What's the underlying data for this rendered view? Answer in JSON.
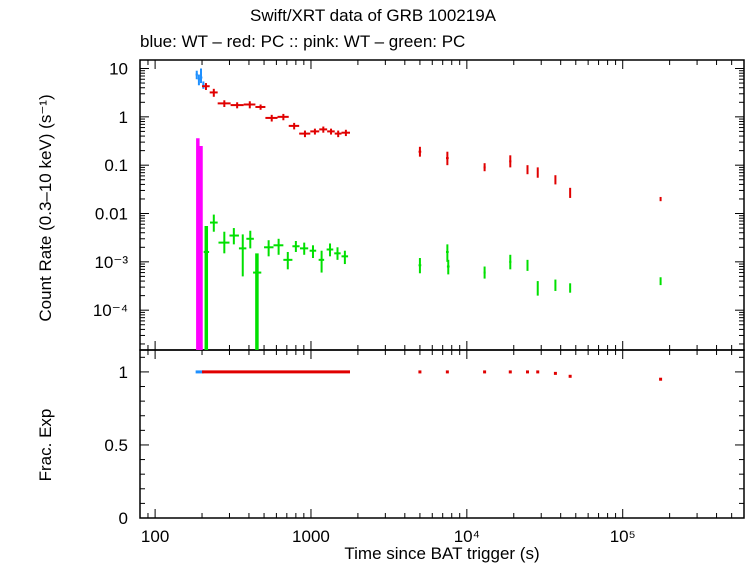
{
  "chart_data": [
    {
      "panel": "top",
      "type": "scatter",
      "title": "Swift/XRT data of GRB 100219A",
      "subtitle": "blue: WT  – red: PC  :: pink: WT  – green: PC",
      "xlabel": "Time since BAT trigger (s)",
      "ylabel": "Count Rate (0.3–10 keV) (s⁻¹)",
      "xscale": "log",
      "yscale": "log",
      "xlim": [
        80,
        600000
      ],
      "ylim": [
        1.5e-05,
        15
      ],
      "x_ticks": [
        {
          "value": 100,
          "label": "100"
        },
        {
          "value": 1000,
          "label": "1000"
        },
        {
          "value": 10000,
          "label": "10⁴"
        },
        {
          "value": 100000,
          "label": "10⁵"
        }
      ],
      "y_ticks": [
        {
          "value": 10,
          "label": "10"
        },
        {
          "value": 1,
          "label": "1"
        },
        {
          "value": 0.1,
          "label": "0.1"
        },
        {
          "value": 0.01,
          "label": "0.01"
        },
        {
          "value": 0.001,
          "label": "10⁻³"
        },
        {
          "value": 0.0001,
          "label": "10⁻⁴"
        }
      ],
      "series": [
        {
          "color": "#1e90ff",
          "points": [
            {
              "x": 185,
              "x0": 182,
              "x1": 188,
              "y": 7.5,
              "y0": 6.0,
              "y1": 9.0
            },
            {
              "x": 191,
              "x0": 188,
              "x1": 194,
              "y": 6.0,
              "y0": 4.5,
              "y1": 7.5
            },
            {
              "x": 197,
              "x0": 194,
              "x1": 201,
              "y": 6.5,
              "y0": 5.0,
              "y1": 10.0
            },
            {
              "x": 204,
              "x0": 201,
              "x1": 207,
              "y": 4.6,
              "y0": 3.8,
              "y1": 5.4
            }
          ]
        },
        {
          "color": "#ff00ff",
          "points": [
            {
              "x": 188,
              "x0": 186,
              "x1": 190,
              "y": 0.3,
              "y0": 1.5e-05,
              "y1": 0.36
            },
            {
              "x": 197,
              "x0": 194,
              "x1": 200,
              "y": 0.12,
              "y0": 1.5e-05,
              "y1": 0.25
            }
          ]
        },
        {
          "color": "#e00000",
          "points": [
            {
              "x": 212,
              "x0": 200,
              "x1": 224,
              "y": 4.3,
              "y0": 3.6,
              "y1": 5.0
            },
            {
              "x": 238,
              "x0": 224,
              "x1": 252,
              "y": 3.2,
              "y0": 2.6,
              "y1": 3.8
            },
            {
              "x": 278,
              "x0": 252,
              "x1": 305,
              "y": 1.9,
              "y0": 1.6,
              "y1": 2.2
            },
            {
              "x": 336,
              "x0": 305,
              "x1": 370,
              "y": 1.75,
              "y0": 1.5,
              "y1": 2.0
            },
            {
              "x": 405,
              "x0": 370,
              "x1": 440,
              "y": 1.8,
              "y0": 1.5,
              "y1": 2.1
            },
            {
              "x": 475,
              "x0": 440,
              "x1": 510,
              "y": 1.6,
              "y0": 1.4,
              "y1": 1.8
            },
            {
              "x": 560,
              "x0": 510,
              "x1": 610,
              "y": 0.95,
              "y0": 0.8,
              "y1": 1.1
            },
            {
              "x": 665,
              "x0": 610,
              "x1": 720,
              "y": 1.0,
              "y0": 0.85,
              "y1": 1.15
            },
            {
              "x": 780,
              "x0": 720,
              "x1": 840,
              "y": 0.65,
              "y0": 0.55,
              "y1": 0.75
            },
            {
              "x": 915,
              "x0": 840,
              "x1": 990,
              "y": 0.45,
              "y0": 0.38,
              "y1": 0.52
            },
            {
              "x": 1060,
              "x0": 990,
              "x1": 1130,
              "y": 0.5,
              "y0": 0.43,
              "y1": 0.57
            },
            {
              "x": 1200,
              "x0": 1130,
              "x1": 1270,
              "y": 0.55,
              "y0": 0.47,
              "y1": 0.63
            },
            {
              "x": 1345,
              "x0": 1270,
              "x1": 1420,
              "y": 0.5,
              "y0": 0.43,
              "y1": 0.57
            },
            {
              "x": 1495,
              "x0": 1420,
              "x1": 1570,
              "y": 0.45,
              "y0": 0.38,
              "y1": 0.52
            },
            {
              "x": 1675,
              "x0": 1570,
              "x1": 1780,
              "y": 0.47,
              "y0": 0.4,
              "y1": 0.54
            },
            {
              "x": 5000,
              "x0": 4900,
              "x1": 5100,
              "y": 0.19,
              "y0": 0.15,
              "y1": 0.24
            },
            {
              "x": 7500,
              "x0": 7350,
              "x1": 7650,
              "y": 0.14,
              "y0": 0.1,
              "y1": 0.19
            },
            {
              "x": 13000,
              "x0": 12800,
              "x1": 13200,
              "y": 0.09,
              "y0": 0.075,
              "y1": 0.11
            },
            {
              "x": 19000,
              "x0": 18700,
              "x1": 19300,
              "y": 0.12,
              "y0": 0.09,
              "y1": 0.16
            },
            {
              "x": 24500,
              "x0": 24200,
              "x1": 24800,
              "y": 0.08,
              "y0": 0.065,
              "y1": 0.1
            },
            {
              "x": 28500,
              "x0": 28200,
              "x1": 28800,
              "y": 0.07,
              "y0": 0.055,
              "y1": 0.09
            },
            {
              "x": 37000,
              "x0": 36700,
              "x1": 37300,
              "y": 0.05,
              "y0": 0.04,
              "y1": 0.062
            },
            {
              "x": 46000,
              "x0": 45700,
              "x1": 46300,
              "y": 0.027,
              "y0": 0.021,
              "y1": 0.034
            },
            {
              "x": 175000,
              "x0": 173500,
              "x1": 176500,
              "y": 0.02,
              "y0": 0.018,
              "y1": 0.022
            }
          ]
        },
        {
          "color": "#00e000",
          "points": [
            {
              "x": 213,
              "x0": 205,
              "x1": 222,
              "y": 0.0016,
              "y0": 1.5e-05,
              "y1": 0.0055
            },
            {
              "x": 238,
              "x0": 225,
              "x1": 252,
              "y": 0.0065,
              "y0": 0.0042,
              "y1": 0.0095
            },
            {
              "x": 278,
              "x0": 255,
              "x1": 300,
              "y": 0.0025,
              "y0": 0.0015,
              "y1": 0.0042
            },
            {
              "x": 320,
              "x0": 300,
              "x1": 345,
              "y": 0.0035,
              "y0": 0.0023,
              "y1": 0.005
            },
            {
              "x": 365,
              "x0": 345,
              "x1": 385,
              "y": 0.0019,
              "y0": 0.0005,
              "y1": 0.0037
            },
            {
              "x": 408,
              "x0": 385,
              "x1": 430,
              "y": 0.003,
              "y0": 0.0019,
              "y1": 0.0044
            },
            {
              "x": 450,
              "x0": 425,
              "x1": 480,
              "y": 0.0006,
              "y0": 1.5e-05,
              "y1": 0.0015
            },
            {
              "x": 535,
              "x0": 500,
              "x1": 575,
              "y": 0.002,
              "y0": 0.0013,
              "y1": 0.0028
            },
            {
              "x": 620,
              "x0": 575,
              "x1": 665,
              "y": 0.0022,
              "y0": 0.0014,
              "y1": 0.003
            },
            {
              "x": 710,
              "x0": 665,
              "x1": 760,
              "y": 0.0011,
              "y0": 0.0007,
              "y1": 0.0016
            },
            {
              "x": 800,
              "x0": 760,
              "x1": 845,
              "y": 0.0021,
              "y0": 0.0016,
              "y1": 0.0027
            },
            {
              "x": 905,
              "x0": 850,
              "x1": 960,
              "y": 0.0019,
              "y0": 0.0014,
              "y1": 0.0025
            },
            {
              "x": 1030,
              "x0": 980,
              "x1": 1080,
              "y": 0.0017,
              "y0": 0.0012,
              "y1": 0.0022
            },
            {
              "x": 1170,
              "x0": 1120,
              "x1": 1215,
              "y": 0.0011,
              "y0": 0.0006,
              "y1": 0.0017
            },
            {
              "x": 1325,
              "x0": 1260,
              "x1": 1390,
              "y": 0.0018,
              "y0": 0.0013,
              "y1": 0.0024
            },
            {
              "x": 1480,
              "x0": 1410,
              "x1": 1550,
              "y": 0.0015,
              "y0": 0.0011,
              "y1": 0.002
            },
            {
              "x": 1650,
              "x0": 1570,
              "x1": 1730,
              "y": 0.0013,
              "y0": 0.0009,
              "y1": 0.0017
            },
            {
              "x": 5000,
              "x0": 4900,
              "x1": 5100,
              "y": 0.00085,
              "y0": 0.00058,
              "y1": 0.0012
            },
            {
              "x": 7500,
              "x0": 7350,
              "x1": 7650,
              "y": 0.0016,
              "y0": 0.001,
              "y1": 0.0023
            },
            {
              "x": 7600,
              "x0": 7450,
              "x1": 7750,
              "y": 0.0008,
              "y0": 0.00055,
              "y1": 0.0011
            },
            {
              "x": 13000,
              "x0": 12800,
              "x1": 13200,
              "y": 0.0006,
              "y0": 0.00045,
              "y1": 0.0008
            },
            {
              "x": 19000,
              "x0": 18700,
              "x1": 19300,
              "y": 0.001,
              "y0": 0.0007,
              "y1": 0.0014
            },
            {
              "x": 24500,
              "x0": 24200,
              "x1": 24800,
              "y": 0.00085,
              "y0": 0.00065,
              "y1": 0.0011
            },
            {
              "x": 28500,
              "x0": 28200,
              "x1": 28800,
              "y": 0.00028,
              "y0": 0.0002,
              "y1": 0.0004
            },
            {
              "x": 37000,
              "x0": 36700,
              "x1": 37300,
              "y": 0.00033,
              "y0": 0.00025,
              "y1": 0.00043
            },
            {
              "x": 46000,
              "x0": 45700,
              "x1": 46300,
              "y": 0.00029,
              "y0": 0.00023,
              "y1": 0.00036
            },
            {
              "x": 175000,
              "x0": 173500,
              "x1": 176500,
              "y": 0.0004,
              "y0": 0.00033,
              "y1": 0.00048
            }
          ]
        }
      ]
    },
    {
      "panel": "bottom",
      "type": "scatter",
      "xlabel": "Time since BAT trigger (s)",
      "ylabel": "Frac. Exp",
      "xscale": "log",
      "yscale": "linear",
      "xlim": [
        80,
        600000
      ],
      "ylim": [
        0,
        1.15
      ],
      "y_ticks": [
        {
          "value": 1,
          "label": "1"
        },
        {
          "value": 0.5,
          "label": "0.5"
        },
        {
          "value": 0,
          "label": "0"
        }
      ],
      "series": [
        {
          "color": "#1e90ff",
          "points": [
            {
              "x": 193,
              "x0": 182,
              "x1": 205,
              "y": 1.0
            }
          ]
        },
        {
          "color": "#e00000",
          "points": [
            {
              "x": 990,
              "x0": 200,
              "x1": 1780,
              "y": 1.0
            },
            {
              "x": 5000,
              "x0": 4900,
              "x1": 5100,
              "y": 1.0
            },
            {
              "x": 7500,
              "x0": 7350,
              "x1": 7650,
              "y": 1.0
            },
            {
              "x": 13000,
              "x0": 12800,
              "x1": 13200,
              "y": 1.0
            },
            {
              "x": 19000,
              "x0": 18700,
              "x1": 19300,
              "y": 1.0
            },
            {
              "x": 24500,
              "x0": 24200,
              "x1": 24800,
              "y": 1.0
            },
            {
              "x": 28500,
              "x0": 28200,
              "x1": 28800,
              "y": 1.0
            },
            {
              "x": 37000,
              "x0": 36700,
              "x1": 37300,
              "y": 0.99
            },
            {
              "x": 46000,
              "x0": 45700,
              "x1": 46300,
              "y": 0.97
            },
            {
              "x": 175000,
              "x0": 173500,
              "x1": 176500,
              "y": 0.95
            }
          ]
        }
      ]
    }
  ]
}
